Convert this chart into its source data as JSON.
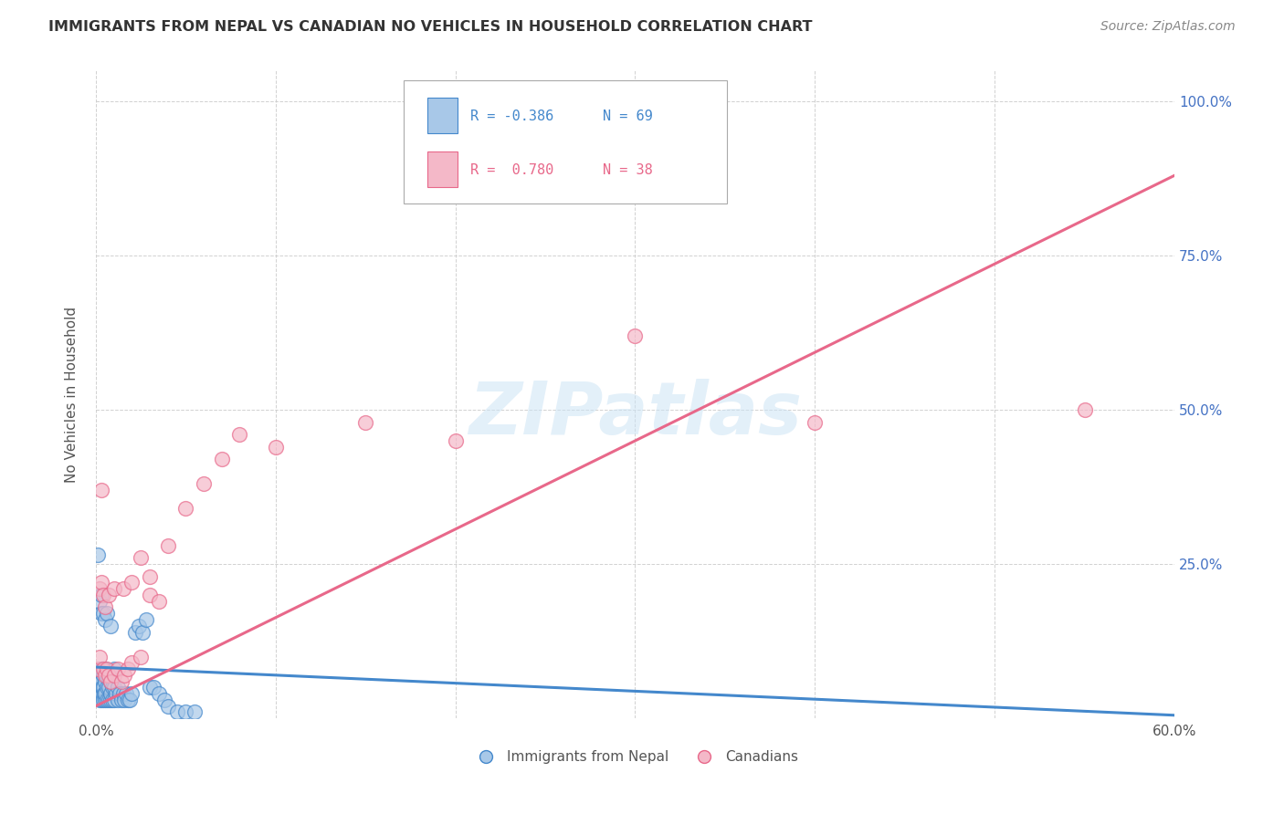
{
  "title": "IMMIGRANTS FROM NEPAL VS CANADIAN NO VEHICLES IN HOUSEHOLD CORRELATION CHART",
  "source": "Source: ZipAtlas.com",
  "ylabel": "No Vehicles in Household",
  "legend_label1": "Immigrants from Nepal",
  "legend_label2": "Canadians",
  "r1": "-0.386",
  "n1": "69",
  "r2": "0.780",
  "n2": "38",
  "xlim": [
    0.0,
    0.6
  ],
  "ylim": [
    0.0,
    1.05
  ],
  "color_blue": "#a8c8e8",
  "color_pink": "#f4b8c8",
  "color_blue_line": "#4488cc",
  "color_pink_line": "#e8688a",
  "color_r1": "#4488cc",
  "color_r2": "#e8688a",
  "blue_x": [
    0.0005,
    0.001,
    0.001,
    0.0015,
    0.0015,
    0.002,
    0.002,
    0.002,
    0.0025,
    0.0025,
    0.003,
    0.003,
    0.003,
    0.003,
    0.0035,
    0.0035,
    0.004,
    0.004,
    0.004,
    0.004,
    0.0045,
    0.005,
    0.005,
    0.005,
    0.005,
    0.006,
    0.006,
    0.006,
    0.007,
    0.007,
    0.008,
    0.008,
    0.008,
    0.009,
    0.009,
    0.01,
    0.01,
    0.011,
    0.012,
    0.012,
    0.013,
    0.014,
    0.015,
    0.016,
    0.017,
    0.018,
    0.019,
    0.02,
    0.022,
    0.024,
    0.026,
    0.028,
    0.03,
    0.032,
    0.035,
    0.038,
    0.04,
    0.045,
    0.05,
    0.055,
    0.001,
    0.002,
    0.003,
    0.003,
    0.004,
    0.005,
    0.006,
    0.008,
    0.01
  ],
  "blue_y": [
    0.055,
    0.05,
    0.07,
    0.04,
    0.06,
    0.03,
    0.05,
    0.07,
    0.04,
    0.06,
    0.03,
    0.05,
    0.06,
    0.08,
    0.04,
    0.05,
    0.03,
    0.05,
    0.07,
    0.08,
    0.04,
    0.03,
    0.04,
    0.06,
    0.08,
    0.03,
    0.05,
    0.07,
    0.03,
    0.05,
    0.03,
    0.04,
    0.06,
    0.03,
    0.05,
    0.03,
    0.05,
    0.04,
    0.03,
    0.05,
    0.04,
    0.03,
    0.04,
    0.03,
    0.04,
    0.03,
    0.03,
    0.04,
    0.14,
    0.15,
    0.14,
    0.16,
    0.05,
    0.05,
    0.04,
    0.03,
    0.02,
    0.01,
    0.01,
    0.01,
    0.265,
    0.19,
    0.2,
    0.17,
    0.17,
    0.16,
    0.17,
    0.15,
    0.08
  ],
  "pink_x": [
    0.001,
    0.002,
    0.003,
    0.004,
    0.005,
    0.006,
    0.007,
    0.008,
    0.01,
    0.012,
    0.014,
    0.016,
    0.018,
    0.02,
    0.025,
    0.03,
    0.035,
    0.002,
    0.003,
    0.004,
    0.005,
    0.007,
    0.01,
    0.015,
    0.02,
    0.025,
    0.03,
    0.04,
    0.05,
    0.06,
    0.07,
    0.08,
    0.1,
    0.15,
    0.2,
    0.3,
    0.4,
    0.55
  ],
  "pink_y": [
    0.08,
    0.1,
    0.37,
    0.08,
    0.07,
    0.08,
    0.07,
    0.06,
    0.07,
    0.08,
    0.06,
    0.07,
    0.08,
    0.09,
    0.1,
    0.2,
    0.19,
    0.21,
    0.22,
    0.2,
    0.18,
    0.2,
    0.21,
    0.21,
    0.22,
    0.26,
    0.23,
    0.28,
    0.34,
    0.38,
    0.42,
    0.46,
    0.44,
    0.48,
    0.45,
    0.62,
    0.48,
    0.5
  ],
  "pink_trend_x0": 0.0,
  "pink_trend_y0": 0.02,
  "pink_trend_x1": 0.6,
  "pink_trend_y1": 0.88,
  "blue_trend_x0": 0.0,
  "blue_trend_y0": 0.083,
  "blue_trend_x1": 0.6,
  "blue_trend_y1": 0.005,
  "watermark": "ZIPatlas",
  "background_color": "#ffffff",
  "grid_color": "#cccccc"
}
